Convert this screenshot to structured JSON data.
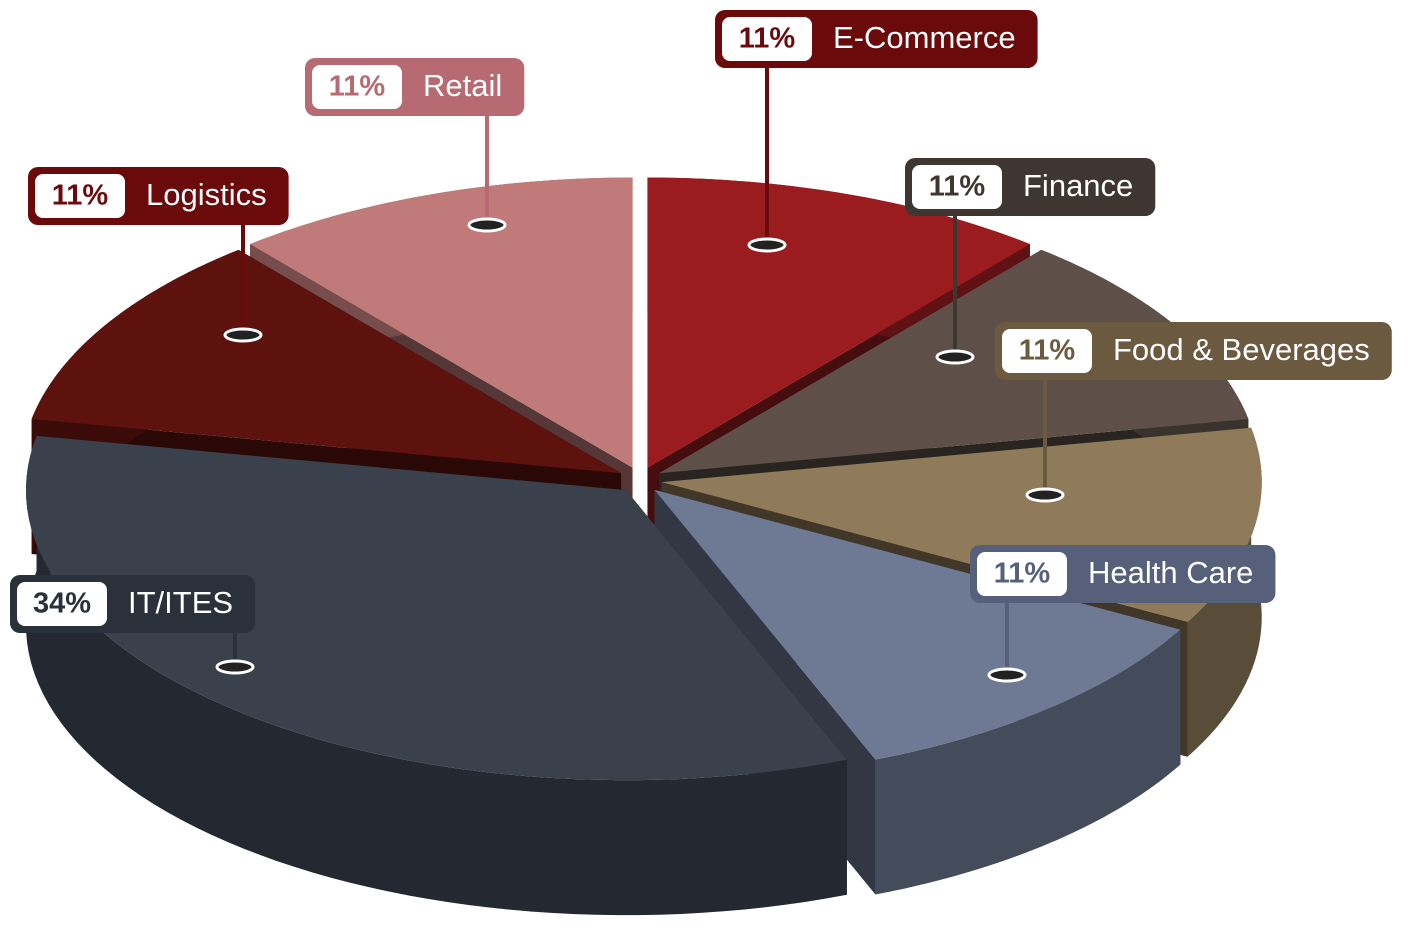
{
  "chart_data": {
    "type": "pie3d",
    "categories": [
      "E-Commerce",
      "Finance",
      "Food & Beverages",
      "Health Care",
      "IT/ITES",
      "Logistics",
      "Retail"
    ],
    "values": [
      11,
      11,
      11,
      11,
      34,
      11,
      11
    ],
    "value_labels": [
      "11%",
      "11%",
      "11%",
      "11%",
      "34%",
      "11%",
      "11%"
    ],
    "colors": [
      "#9b1c1f",
      "#5e5048",
      "#8f7a5a",
      "#6e7a94",
      "#3a414d",
      "#5e120e",
      "#c07a7a"
    ]
  }
}
